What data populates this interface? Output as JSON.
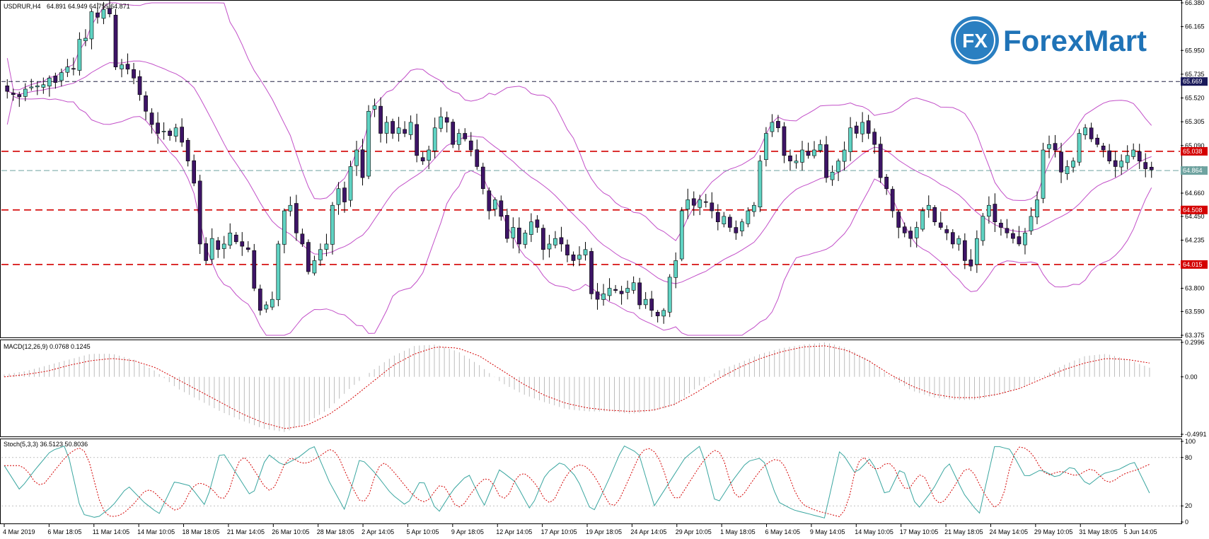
{
  "header": {
    "symbol_label": "USDRUR,H4",
    "ohlc_label": "64.891 64.949 64.755 64.871"
  },
  "logo": {
    "mark_text": "FX",
    "name_text": "ForexMart",
    "colors": {
      "primary": "#1f73b7",
      "circle": "#2a7fc1"
    }
  },
  "colors": {
    "bull_candle": "#5fd3c3",
    "bear_candle": "#3d1466",
    "bands": "#c24fc8",
    "level_red": "#d40000",
    "level_dark": "#222244",
    "current_price": "#6fa3a0",
    "macd_hist": "#bdbdbd",
    "macd_signal": "#d40000",
    "stoch_main": "#3aa6a0",
    "stoch_signal": "#d40000"
  },
  "chart_data": [
    {
      "type": "candlestick",
      "pane": "price",
      "ylim": [
        63.375,
        66.38
      ],
      "y_ticks": [
        "66.380",
        "66.165",
        "65.950",
        "65.735",
        "65.520",
        "65.305",
        "65.090",
        "64.880",
        "64.660",
        "64.450",
        "64.235",
        "64.020",
        "63.800",
        "63.590",
        "63.375"
      ],
      "x_ticks": [
        "4 Mar 2019",
        "6 Mar 18:05",
        "11 Mar 14:05",
        "14 Mar 10:05",
        "18 Mar 18:05",
        "21 Mar 14:05",
        "26 Mar 10:05",
        "28 Mar 18:05",
        "2 Apr 14:05",
        "5 Apr 10:05",
        "9 Apr 18:05",
        "12 Apr 14:05",
        "17 Apr 10:05",
        "19 Apr 18:05",
        "24 Apr 14:05",
        "29 Apr 10:05",
        "1 May 18:05",
        "6 May 14:05",
        "9 May 14:05",
        "14 May 10:05",
        "17 May 10:05",
        "21 May 18:05",
        "24 May 14:05",
        "29 May 10:05",
        "31 May 18:05",
        "5 Jun 14:05"
      ],
      "levels": [
        {
          "price": 65.669,
          "label": "65.669",
          "style": "dashed-dark"
        },
        {
          "price": 65.038,
          "label": "65.038",
          "style": "dashed-red"
        },
        {
          "price": 64.864,
          "label": "64.864",
          "style": "current"
        },
        {
          "price": 64.508,
          "label": "64.508",
          "style": "dashed-red"
        },
        {
          "price": 64.015,
          "label": "64.015",
          "style": "dashed-red"
        }
      ],
      "closes": [
        65.58,
        65.55,
        65.53,
        65.6,
        65.62,
        65.63,
        65.64,
        65.7,
        65.66,
        65.75,
        65.8,
        65.78,
        66.05,
        66.06,
        66.3,
        66.25,
        66.32,
        66.28,
        65.8,
        65.82,
        65.78,
        65.7,
        65.55,
        65.4,
        65.28,
        65.2,
        65.22,
        65.18,
        65.25,
        65.12,
        64.95,
        64.75,
        64.2,
        64.05,
        64.25,
        64.15,
        64.2,
        64.3,
        64.22,
        64.18,
        64.15,
        63.8,
        63.6,
        63.65,
        63.7,
        64.2,
        64.5,
        64.55,
        64.3,
        64.2,
        63.95,
        64.05,
        64.15,
        64.2,
        64.55,
        64.7,
        64.58,
        64.9,
        65.05,
        64.8,
        65.4,
        65.45,
        65.2,
        65.3,
        65.2,
        65.25,
        65.2,
        65.3,
        65.0,
        64.95,
        65.05,
        65.25,
        65.35,
        65.3,
        65.1,
        65.2,
        65.15,
        65.05,
        64.9,
        64.7,
        64.5,
        64.6,
        64.45,
        64.25,
        64.35,
        64.2,
        64.3,
        64.4,
        64.35,
        64.15,
        64.2,
        64.25,
        64.2,
        64.1,
        64.05,
        64.1,
        64.15,
        63.75,
        63.7,
        63.75,
        63.8,
        63.78,
        63.75,
        63.8,
        63.85,
        63.65,
        63.7,
        63.6,
        63.55,
        63.6,
        63.9,
        64.05,
        64.5,
        64.6,
        64.55,
        64.6,
        64.58,
        64.5,
        64.4,
        64.45,
        64.35,
        64.3,
        64.4,
        64.5,
        64.55,
        64.95,
        65.2,
        65.3,
        65.25,
        65.0,
        64.95,
        64.95,
        65.05,
        65.0,
        65.05,
        65.1,
        64.8,
        64.85,
        64.95,
        65.05,
        65.25,
        65.2,
        65.3,
        65.2,
        65.1,
        64.8,
        64.7,
        64.5,
        64.35,
        64.3,
        64.25,
        64.35,
        64.5,
        64.55,
        64.4,
        64.35,
        64.3,
        64.2,
        64.25,
        64.05,
        64.0,
        64.25,
        64.45,
        64.55,
        64.4,
        64.35,
        64.3,
        64.25,
        64.2,
        64.3,
        64.45,
        64.6,
        65.05,
        65.1,
        65.05,
        64.85,
        64.9,
        64.95,
        65.2,
        65.25,
        65.15,
        65.1,
        65.05,
        64.95,
        64.9,
        64.95,
        65.0,
        65.05,
        64.95,
        64.88,
        64.871
      ]
    },
    {
      "type": "bar+line",
      "pane": "macd",
      "label": "MACD(12,26,9) 0.0768 0.1245",
      "ylim": [
        -0.4991,
        0.2996
      ],
      "y_ticks": [
        "0.2996",
        "0.00",
        "-0.4991"
      ],
      "hist_profile": [
        0.02,
        0.05,
        0.1,
        0.15,
        0.2,
        0.2,
        0.15,
        0.05,
        -0.1,
        -0.2,
        -0.3,
        -0.38,
        -0.45,
        -0.48,
        -0.4,
        -0.28,
        -0.1,
        0.05,
        0.18,
        0.27,
        0.28,
        0.22,
        0.1,
        -0.05,
        -0.15,
        -0.22,
        -0.28,
        -0.3,
        -0.3,
        -0.32,
        -0.3,
        -0.25,
        -0.1,
        0.05,
        0.12,
        0.2,
        0.25,
        0.28,
        0.3,
        0.25,
        0.15,
        0.0,
        -0.12,
        -0.18,
        -0.2,
        -0.2,
        -0.16,
        -0.1,
        0.0,
        0.1,
        0.18,
        0.2,
        0.15,
        0.08
      ],
      "signal_profile": [
        0.0,
        0.02,
        0.05,
        0.1,
        0.14,
        0.16,
        0.14,
        0.08,
        -0.02,
        -0.12,
        -0.22,
        -0.32,
        -0.4,
        -0.45,
        -0.42,
        -0.33,
        -0.2,
        -0.05,
        0.1,
        0.2,
        0.26,
        0.25,
        0.18,
        0.06,
        -0.06,
        -0.16,
        -0.23,
        -0.27,
        -0.29,
        -0.3,
        -0.29,
        -0.24,
        -0.14,
        -0.02,
        0.08,
        0.16,
        0.22,
        0.26,
        0.27,
        0.23,
        0.14,
        0.02,
        -0.08,
        -0.15,
        -0.18,
        -0.18,
        -0.15,
        -0.1,
        -0.02,
        0.06,
        0.12,
        0.16,
        0.15,
        0.12
      ]
    },
    {
      "type": "line",
      "pane": "stochastic",
      "label": "Stoch(5,3,3) 36.5123 50.8036",
      "ylim": [
        0,
        100
      ],
      "y_ticks": [
        "100",
        "80",
        "20",
        "0"
      ],
      "main_profile": [
        70,
        40,
        65,
        88,
        95,
        10,
        5,
        20,
        45,
        25,
        10,
        50,
        45,
        20,
        90,
        60,
        30,
        85,
        70,
        80,
        95,
        50,
        15,
        80,
        60,
        35,
        20,
        55,
        10,
        40,
        60,
        20,
        65,
        50,
        15,
        60,
        75,
        55,
        10,
        50,
        95,
        85,
        20,
        50,
        80,
        95,
        20,
        50,
        75,
        80,
        25,
        15,
        10,
        5,
        90,
        60,
        80,
        30,
        70,
        15,
        40,
        75,
        35,
        10,
        95,
        90,
        55,
        65,
        55,
        70,
        45,
        60,
        65,
        75,
        36
      ]
    }
  ]
}
